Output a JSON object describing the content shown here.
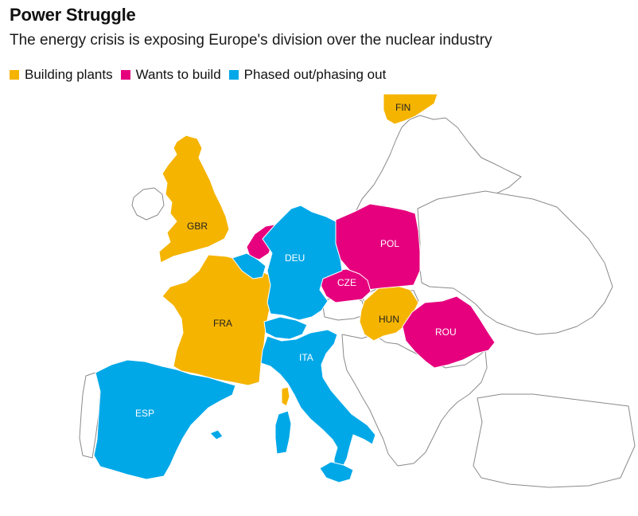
{
  "title": "Power Struggle",
  "subtitle": "The energy crisis is exposing Europe's division over the nuclear industry",
  "legend": [
    {
      "label": "Building plants",
      "color": "#F5B400"
    },
    {
      "label": "Wants to build",
      "color": "#E6007E"
    },
    {
      "label": "Phased out/phasing out",
      "color": "#00A8E8"
    }
  ],
  "countries": {
    "fin": {
      "code": "FIN",
      "category": "Building plants"
    },
    "gbr": {
      "code": "GBR",
      "category": "Building plants"
    },
    "fra": {
      "code": "FRA",
      "category": "Building plants"
    },
    "hun": {
      "code": "HUN",
      "category": "Building plants"
    },
    "pol": {
      "code": "POL",
      "category": "Wants to build"
    },
    "cze": {
      "code": "CZE",
      "category": "Wants to build"
    },
    "rou": {
      "code": "ROU",
      "category": "Wants to build"
    },
    "nld": {
      "code": "",
      "category": "Wants to build"
    },
    "deu": {
      "code": "DEU",
      "category": "Phased out/phasing out"
    },
    "ita": {
      "code": "ITA",
      "category": "Phased out/phasing out"
    },
    "esp": {
      "code": "ESP",
      "category": "Phased out/phasing out"
    },
    "bel": {
      "code": "",
      "category": "Phased out/phasing out"
    },
    "che": {
      "code": "",
      "category": "Phased out/phasing out"
    }
  }
}
